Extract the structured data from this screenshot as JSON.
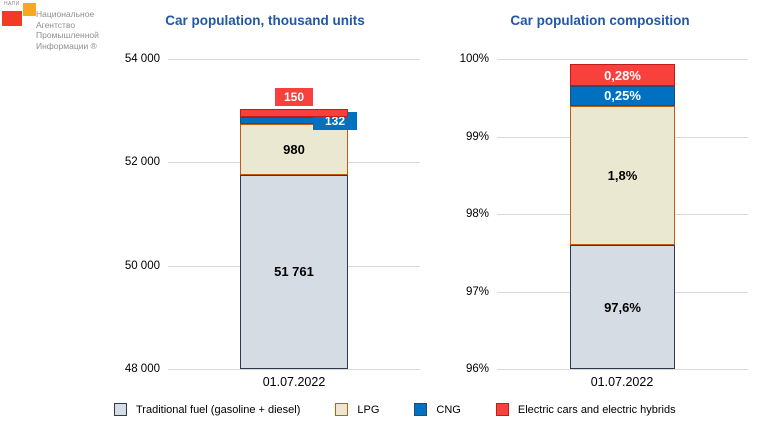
{
  "logo": {
    "acronym": "НАПИ",
    "name_lines": [
      "Национальное",
      "Агентство",
      "Промышленной",
      "Информации ®"
    ],
    "orange_color": "#F7A81F",
    "red_color": "#F23A24"
  },
  "theme": {
    "title_color": "#2057A7",
    "gridline_color": "#D9D9D9",
    "text_color": "#000000"
  },
  "chart_data": [
    {
      "type": "bar",
      "stacked": true,
      "title": "Car population, thousand units",
      "categories": [
        "01.07.2022"
      ],
      "ylim": [
        48000,
        54000
      ],
      "grid": true,
      "legend_position": "bottom",
      "yticks": [
        {
          "label": "54 000",
          "value": 54000
        },
        {
          "label": "52 000",
          "value": 52000
        },
        {
          "label": "50 000",
          "value": 50000
        },
        {
          "label": "48 000",
          "value": 48000
        }
      ],
      "series": [
        {
          "name": "Traditional fuel (gasoline + diesel)",
          "values": [
            51761
          ],
          "data_label": "51 761",
          "color": "#D6DCE4",
          "border_color": "#2E3A4E",
          "label_style": "inside",
          "label_color": "#000000"
        },
        {
          "name": "LPG",
          "values": [
            980
          ],
          "data_label": "980",
          "color": "#EBE8D2",
          "border_color": "#C55A11",
          "label_style": "inside",
          "label_color": "#000000"
        },
        {
          "name": "CNG",
          "values": [
            132
          ],
          "data_label": "132",
          "color": "#0070C0",
          "border_color": "#1F4E79",
          "label_style": "callout-right",
          "label_color": "#FFFFFF"
        },
        {
          "name": "Electric cars and electric hybrids",
          "values": [
            150
          ],
          "data_label": "150",
          "color": "#F8403C",
          "border_color": "#C11B1B",
          "label_style": "callout-above",
          "label_color": "#FFFFFF"
        }
      ]
    },
    {
      "type": "bar",
      "stacked": true,
      "title": "Car population composition",
      "categories": [
        "01.07.2022"
      ],
      "ylim": [
        96,
        100
      ],
      "grid": true,
      "legend_position": "bottom",
      "yticks": [
        {
          "label": "100%",
          "value": 100
        },
        {
          "label": "99%",
          "value": 99
        },
        {
          "label": "98%",
          "value": 98
        },
        {
          "label": "97%",
          "value": 97
        },
        {
          "label": "96%",
          "value": 96
        }
      ],
      "series": [
        {
          "name": "Traditional fuel (gasoline + diesel)",
          "values": [
            97.6
          ],
          "data_label": "97,6%",
          "color": "#D6DCE4",
          "border_color": "#2E3A4E",
          "label_style": "inside",
          "label_color": "#000000"
        },
        {
          "name": "LPG",
          "values": [
            1.8
          ],
          "data_label": "1,8%",
          "color": "#EBE8D2",
          "border_color": "#C55A11",
          "label_style": "inside",
          "label_color": "#000000"
        },
        {
          "name": "CNG",
          "values": [
            0.25
          ],
          "data_label": "0,25%",
          "color": "#0070C0",
          "border_color": "#1F4E79",
          "label_style": "inside",
          "label_color": "#FFFFFF"
        },
        {
          "name": "Electric cars and electric hybrids",
          "values": [
            0.28
          ],
          "data_label": "0,28%",
          "color": "#F8403C",
          "border_color": "#C11B1B",
          "label_style": "inside",
          "label_color": "#FFFFFF"
        }
      ]
    }
  ],
  "legend": {
    "items": [
      {
        "label": "Traditional fuel (gasoline + diesel)",
        "color": "#D6DCE4",
        "border_color": "#2E3A4E"
      },
      {
        "label": "LPG",
        "color": "#EBE8D2",
        "border_color": "#C55A11"
      },
      {
        "label": "CNG",
        "color": "#0070C0",
        "border_color": "#1F4E79"
      },
      {
        "label": "Electric cars and electric hybrids",
        "color": "#F8403C",
        "border_color": "#C11B1B"
      }
    ]
  }
}
